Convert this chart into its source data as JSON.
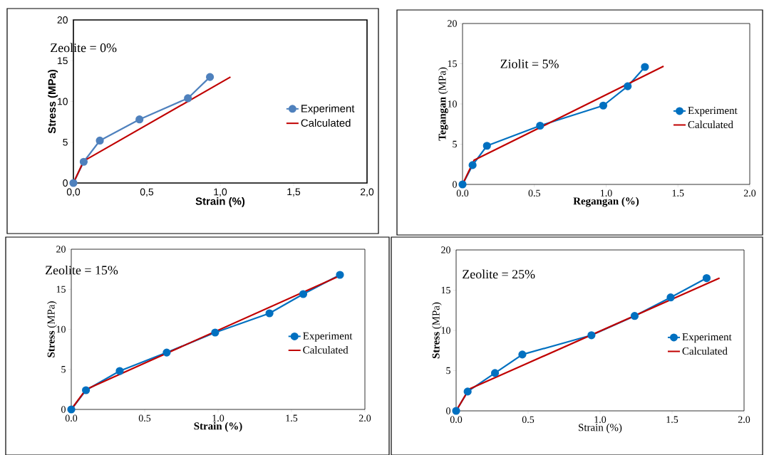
{
  "chart_data": [
    {
      "type": "line",
      "xlabel": "Strain  (%)",
      "ylabel": "Stress  (MPa)",
      "annotations": [
        "Zeolite = 0%"
      ],
      "xlim": [
        0,
        2
      ],
      "xticks": [
        {
          "value": 0,
          "label": "0,0"
        },
        {
          "value": 0.5,
          "label": "0,5"
        },
        {
          "value": 1,
          "label": "1,0"
        },
        {
          "value": 1.5,
          "label": "1,5"
        },
        {
          "value": 2,
          "label": "2,0"
        }
      ],
      "ylim": [
        0,
        20
      ],
      "yticks": [
        0,
        5,
        10,
        15,
        20
      ],
      "legend": "right",
      "grid": false,
      "series": [
        {
          "name": "Experiment",
          "color": "#4f81bd",
          "marker": "circle",
          "x": [
            0,
            0.07,
            0.18,
            0.45,
            0.78,
            0.93
          ],
          "values": [
            0,
            2.6,
            5.2,
            7.8,
            10.4,
            13.0
          ]
        },
        {
          "name": "Calculated",
          "color": "#c00000",
          "marker": "none",
          "x": [
            0,
            0.07,
            1.07
          ],
          "values": [
            0,
            2.7,
            13.0
          ]
        }
      ]
    },
    {
      "type": "line",
      "xlabel": "Regangan  (%)",
      "ylabel": "**Tegangan** (MPa)",
      "annotations": [
        "Ziolit = 5%"
      ],
      "xlim": [
        0,
        2
      ],
      "xticks": [
        {
          "value": 0,
          "label": "0.0"
        },
        {
          "value": 0.5,
          "label": "0.5"
        },
        {
          "value": 1,
          "label": "1.0"
        },
        {
          "value": 1.5,
          "label": "1.5"
        },
        {
          "value": 2,
          "label": "2.0"
        }
      ],
      "ylim": [
        0,
        20
      ],
      "yticks": [
        0,
        5,
        10,
        15,
        20
      ],
      "legend": "right",
      "grid": false,
      "series": [
        {
          "name": "Experiment",
          "color": "#0070c0",
          "marker": "circle",
          "x": [
            0,
            0.07,
            0.17,
            0.54,
            0.98,
            1.15,
            1.27
          ],
          "values": [
            0,
            2.4,
            4.8,
            7.3,
            9.8,
            12.2,
            14.6
          ]
        },
        {
          "name": "Calculated",
          "color": "#c00000",
          "marker": "none",
          "x": [
            0,
            0.08,
            1.4
          ],
          "values": [
            0,
            3.0,
            14.7
          ]
        }
      ]
    },
    {
      "type": "line",
      "xlabel": "Strain  (%)",
      "ylabel": "**Stress** (MPa)",
      "annotations": [
        "Zeolite = 15%"
      ],
      "xlim": [
        0,
        2
      ],
      "xticks": [
        {
          "value": 0,
          "label": "0.0"
        },
        {
          "value": 0.5,
          "label": "0.5"
        },
        {
          "value": 1,
          "label": "1.0"
        },
        {
          "value": 1.5,
          "label": "1.5"
        },
        {
          "value": 2,
          "label": "2.0"
        }
      ],
      "ylim": [
        0,
        20
      ],
      "yticks": [
        0,
        5,
        10,
        15,
        20
      ],
      "legend": "right",
      "grid": false,
      "series": [
        {
          "name": "Experiment",
          "color": "#0070c0",
          "marker": "circle",
          "x": [
            0,
            0.1,
            0.33,
            0.65,
            0.98,
            1.35,
            1.58,
            1.83
          ],
          "values": [
            0,
            2.4,
            4.8,
            7.1,
            9.6,
            12.0,
            14.4,
            16.8
          ]
        },
        {
          "name": "Calculated",
          "color": "#c00000",
          "marker": "none",
          "x": [
            0,
            0.1,
            1.83
          ],
          "values": [
            0,
            2.5,
            16.7
          ]
        }
      ]
    },
    {
      "type": "line",
      "xlabel": "Strain  (%)",
      "ylabel": "**Stress** (MPa)",
      "annotations": [
        "Zeolite = 25%"
      ],
      "xlim": [
        0,
        2
      ],
      "xticks": [
        {
          "value": 0,
          "label": "0.0"
        },
        {
          "value": 0.5,
          "label": "0.5"
        },
        {
          "value": 1,
          "label": "1.0"
        },
        {
          "value": 1.5,
          "label": "1.5"
        },
        {
          "value": 2,
          "label": "2.0"
        }
      ],
      "ylim": [
        0,
        20
      ],
      "yticks": [
        0,
        5,
        10,
        15,
        20
      ],
      "legend": "right",
      "grid": false,
      "series": [
        {
          "name": "Experiment",
          "color": "#0070c0",
          "marker": "circle",
          "x": [
            0,
            0.08,
            0.27,
            0.46,
            0.94,
            1.24,
            1.49,
            1.74
          ],
          "values": [
            0,
            2.4,
            4.7,
            7.0,
            9.4,
            11.8,
            14.1,
            16.5
          ]
        },
        {
          "name": "Calculated",
          "color": "#c00000",
          "marker": "none",
          "x": [
            0,
            0.09,
            1.83
          ],
          "values": [
            0,
            2.7,
            16.5
          ]
        }
      ]
    }
  ]
}
